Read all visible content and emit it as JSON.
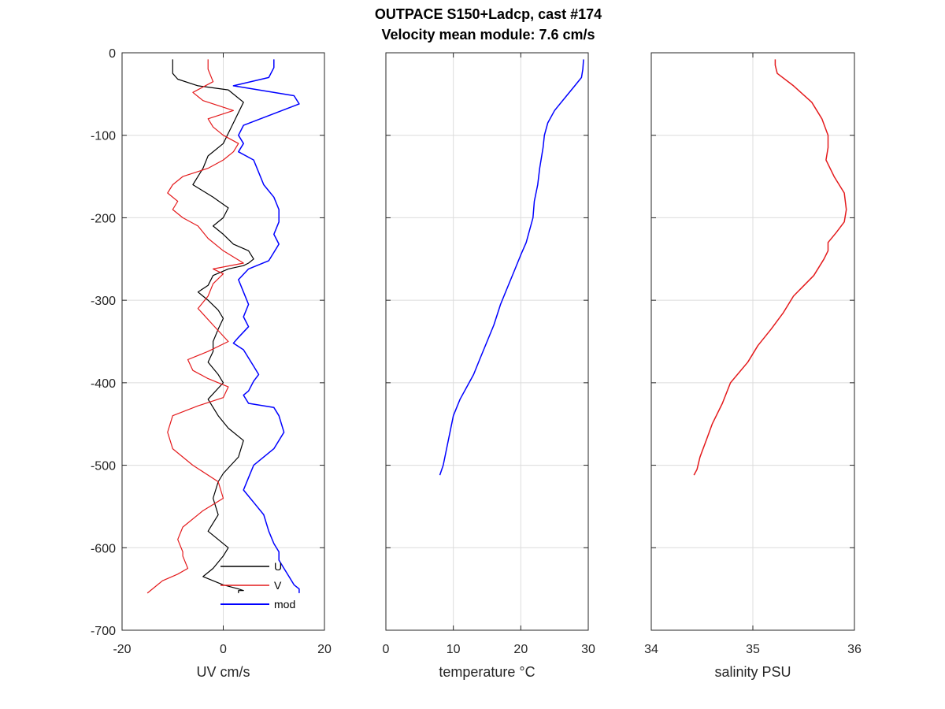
{
  "title": {
    "line1": "OUTPACE S150+Ladcp, cast #174",
    "line2": "Velocity mean module:  7.6 cm/s"
  },
  "colors": {
    "u": "#000000",
    "v": "#e41a1c",
    "mod": "#0000ff"
  },
  "chart_data": [
    {
      "type": "line",
      "xlabel": "UV cm/s",
      "ylabel": "",
      "xlim": [
        -20,
        20
      ],
      "ylim": [
        -700,
        0
      ],
      "xticks": [
        -20,
        0,
        20
      ],
      "yticks": [
        0,
        -100,
        -200,
        -300,
        -400,
        -500,
        -600,
        -700
      ],
      "grid": true,
      "legend": {
        "position": "bottom-right"
      },
      "series": [
        {
          "name": "U",
          "color": "#000000",
          "x": [
            -10,
            -10,
            -9,
            -5,
            1,
            4,
            2,
            0,
            -3,
            -4,
            -6,
            -2,
            1,
            0,
            -2,
            0,
            2,
            5,
            6,
            5,
            4,
            1,
            -2,
            -3,
            -5,
            -3,
            -1,
            0,
            -1,
            -2,
            -2,
            -3,
            -1,
            0,
            -3,
            -1,
            1,
            4,
            3,
            0,
            -1,
            -2,
            -1,
            -3,
            -1,
            1,
            0,
            -2,
            -4,
            0,
            3,
            4,
            3,
            3
          ],
          "y": [
            -8,
            -25,
            -32,
            -40,
            -45,
            -60,
            -85,
            -110,
            -125,
            -140,
            -160,
            -175,
            -188,
            -200,
            -210,
            -220,
            -232,
            -240,
            -250,
            -255,
            -258,
            -262,
            -270,
            -282,
            -290,
            -300,
            -312,
            -322,
            -335,
            -350,
            -362,
            -375,
            -390,
            -400,
            -420,
            -440,
            -455,
            -470,
            -490,
            -510,
            -520,
            -540,
            -560,
            -580,
            -590,
            -600,
            -610,
            -625,
            -635,
            -645,
            -650,
            -652,
            -652,
            -655
          ]
        },
        {
          "name": "V",
          "color": "#e41a1c",
          "x": [
            -3,
            -3,
            -2,
            -6,
            -4,
            2,
            -3,
            -2,
            0,
            3,
            2,
            0,
            -3,
            -8,
            -10,
            -11,
            -9,
            -10,
            -8,
            -5,
            -3,
            0,
            4,
            -2,
            0,
            -2,
            -3,
            -5,
            -2,
            1,
            -3,
            -7,
            -6,
            -3,
            1,
            0,
            -5,
            -10,
            -11,
            -10,
            -6,
            -1,
            0,
            -4,
            -8,
            -9,
            -8,
            -8,
            -7,
            -9,
            -12,
            -13,
            -14,
            -15
          ],
          "y": [
            -8,
            -20,
            -35,
            -48,
            -58,
            -70,
            -80,
            -90,
            -100,
            -110,
            -120,
            -130,
            -140,
            -150,
            -160,
            -170,
            -180,
            -190,
            -200,
            -210,
            -225,
            -240,
            -255,
            -262,
            -268,
            -280,
            -295,
            -310,
            -330,
            -350,
            -362,
            -372,
            -385,
            -395,
            -405,
            -418,
            -428,
            -440,
            -460,
            -480,
            -500,
            -520,
            -540,
            -555,
            -575,
            -590,
            -605,
            -610,
            -625,
            -632,
            -640,
            -645,
            -650,
            -655
          ]
        },
        {
          "name": "mod",
          "color": "#0000ff",
          "x": [
            10,
            10,
            9,
            2,
            14,
            15,
            4,
            3,
            4,
            3,
            6,
            7,
            8,
            10,
            11,
            11,
            10,
            11,
            10,
            9,
            5,
            3,
            4,
            5,
            4,
            5,
            3,
            2,
            4,
            5,
            6,
            7,
            6,
            5,
            4,
            5,
            10,
            11,
            12,
            10,
            6,
            5,
            4,
            6,
            8,
            9,
            10,
            11,
            11,
            12,
            13,
            14,
            15,
            15
          ],
          "y": [
            -8,
            -18,
            -30,
            -40,
            -52,
            -62,
            -88,
            -100,
            -110,
            -120,
            -130,
            -145,
            -160,
            -175,
            -190,
            -205,
            -220,
            -232,
            -242,
            -252,
            -262,
            -275,
            -290,
            -305,
            -320,
            -332,
            -345,
            -352,
            -360,
            -370,
            -380,
            -390,
            -398,
            -410,
            -415,
            -425,
            -430,
            -440,
            -460,
            -480,
            -500,
            -515,
            -530,
            -545,
            -560,
            -580,
            -595,
            -605,
            -615,
            -625,
            -635,
            -645,
            -650,
            -655
          ]
        }
      ]
    },
    {
      "type": "line",
      "xlabel": "temperature °C",
      "ylabel": "",
      "xlim": [
        0,
        30
      ],
      "ylim": [
        -700,
        0
      ],
      "xticks": [
        0,
        10,
        20,
        30
      ],
      "grid": true,
      "series": [
        {
          "color": "#0000ff",
          "x": [
            29.3,
            29.2,
            29.0,
            28.0,
            26.5,
            25.0,
            24.0,
            23.5,
            23.3,
            22.8,
            22.5,
            22.0,
            21.8,
            21.3,
            20.8,
            20.0,
            19.0,
            18.0,
            17.0,
            16.0,
            15.0,
            14.0,
            13.0,
            12.0,
            11.0,
            10.0,
            9.5,
            9.0,
            8.5,
            8.0
          ],
          "y": [
            -8,
            -20,
            -30,
            -40,
            -55,
            -70,
            -85,
            -100,
            -115,
            -140,
            -160,
            -180,
            -200,
            -215,
            -230,
            -245,
            -265,
            -285,
            -305,
            -330,
            -350,
            -370,
            -390,
            -405,
            -420,
            -440,
            -460,
            -480,
            -500,
            -512
          ]
        }
      ]
    },
    {
      "type": "line",
      "xlabel": "salinity PSU",
      "ylabel": "",
      "xlim": [
        34,
        36
      ],
      "ylim": [
        -700,
        0
      ],
      "xticks": [
        34,
        35,
        36
      ],
      "grid": true,
      "series": [
        {
          "color": "#e41a1c",
          "x": [
            35.22,
            35.22,
            35.24,
            35.4,
            35.58,
            35.68,
            35.74,
            35.74,
            35.72,
            35.8,
            35.9,
            35.92,
            35.9,
            35.82,
            35.74,
            35.74,
            35.7,
            35.6,
            35.4,
            35.3,
            35.18,
            35.05,
            34.95,
            34.78,
            34.7,
            34.6,
            34.54,
            34.48,
            34.45,
            34.42
          ],
          "y": [
            -8,
            -15,
            -25,
            -40,
            -60,
            -80,
            -100,
            -115,
            -130,
            -150,
            -170,
            -190,
            -205,
            -218,
            -230,
            -240,
            -250,
            -270,
            -295,
            -315,
            -335,
            -355,
            -375,
            -400,
            -425,
            -450,
            -470,
            -490,
            -505,
            -512
          ]
        }
      ]
    }
  ]
}
